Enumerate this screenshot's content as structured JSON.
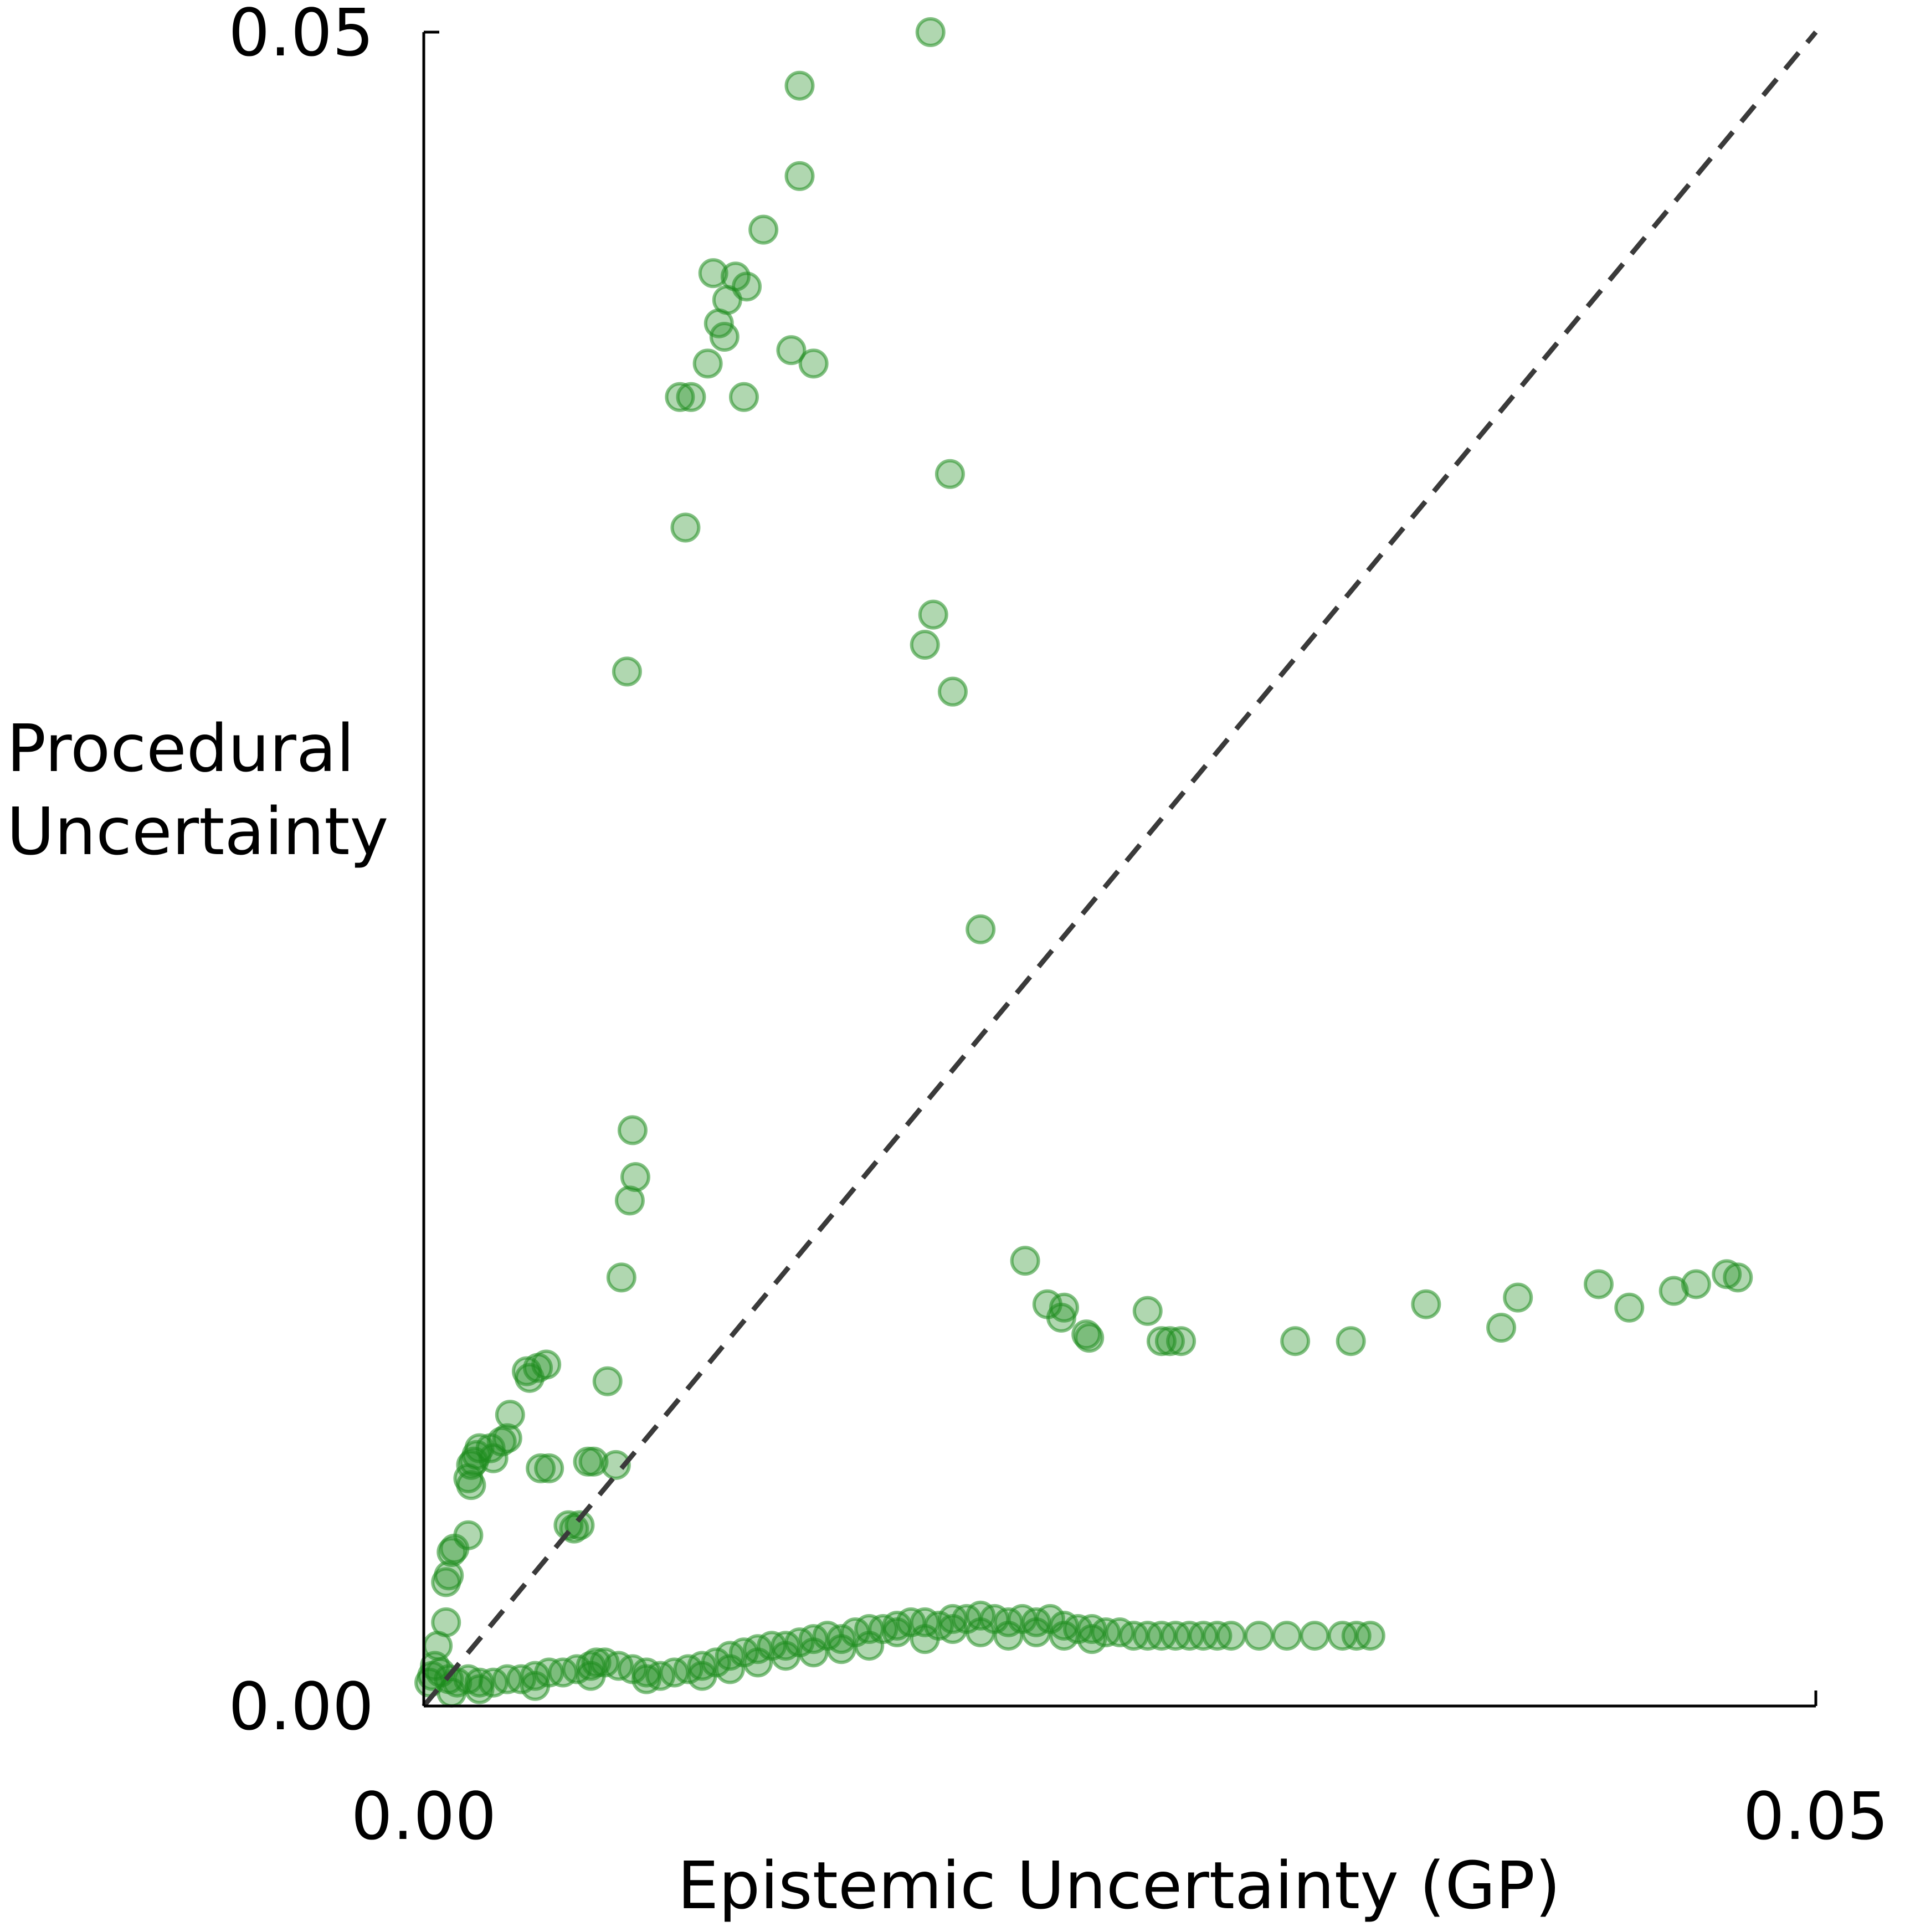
{
  "chart_data": {
    "type": "scatter",
    "title": "",
    "xlabel": "Epistemic Uncertainty (GP)",
    "ylabel_lines": [
      "Procedural",
      "Uncertainty"
    ],
    "xlim": [
      0,
      0.05
    ],
    "ylim": [
      0,
      0.05
    ],
    "x_ticks": [
      {
        "value": 0,
        "label": "0.00"
      },
      {
        "value": 0.05,
        "label": "0.05"
      }
    ],
    "y_ticks": [
      {
        "value": 0,
        "label": "0.00"
      },
      {
        "value": 0.05,
        "label": "0.05"
      }
    ],
    "grid": false,
    "reference_line": {
      "style": "dashed",
      "color": "#3a3a3a",
      "from": [
        0,
        0
      ],
      "to": [
        0.05,
        0.05
      ]
    },
    "point_color": "#1e8c1e",
    "point_opacity": 0.35,
    "series": [
      {
        "name": "points",
        "points": [
          [
            0.0182,
            0.05
          ],
          [
            0.0135,
            0.0484
          ],
          [
            0.0135,
            0.0457
          ],
          [
            0.0122,
            0.0441
          ],
          [
            0.0104,
            0.0428
          ],
          [
            0.0112,
            0.0427
          ],
          [
            0.0116,
            0.0424
          ],
          [
            0.0109,
            0.042
          ],
          [
            0.0106,
            0.0413
          ],
          [
            0.0108,
            0.0409
          ],
          [
            0.0102,
            0.0401
          ],
          [
            0.0132,
            0.0405
          ],
          [
            0.014,
            0.0401
          ],
          [
            0.0092,
            0.0391
          ],
          [
            0.0096,
            0.0391
          ],
          [
            0.0115,
            0.0391
          ],
          [
            0.0189,
            0.0368
          ],
          [
            0.0094,
            0.0352
          ],
          [
            0.0183,
            0.0326
          ],
          [
            0.018,
            0.0317
          ],
          [
            0.019,
            0.0303
          ],
          [
            0.0073,
            0.0309
          ],
          [
            0.02,
            0.0232
          ],
          [
            0.0075,
            0.0172
          ],
          [
            0.0076,
            0.0158
          ],
          [
            0.0074,
            0.0151
          ],
          [
            0.0071,
            0.0128
          ],
          [
            0.0216,
            0.0133
          ],
          [
            0.0224,
            0.012
          ],
          [
            0.023,
            0.0119
          ],
          [
            0.0229,
            0.0116
          ],
          [
            0.0238,
            0.0111
          ],
          [
            0.0239,
            0.011
          ],
          [
            0.026,
            0.0118
          ],
          [
            0.0265,
            0.0109
          ],
          [
            0.0268,
            0.0109
          ],
          [
            0.0272,
            0.0109
          ],
          [
            0.0313,
            0.0109
          ],
          [
            0.0333,
            0.0109
          ],
          [
            0.036,
            0.012
          ],
          [
            0.0387,
            0.0113
          ],
          [
            0.0393,
            0.0122
          ],
          [
            0.0422,
            0.0126
          ],
          [
            0.0433,
            0.0119
          ],
          [
            0.0449,
            0.0124
          ],
          [
            0.0457,
            0.0126
          ],
          [
            0.0468,
            0.0129
          ],
          [
            0.0472,
            0.0128
          ],
          [
            0.0037,
            0.01
          ],
          [
            0.0041,
            0.0101
          ],
          [
            0.0038,
            0.0098
          ],
          [
            0.0044,
            0.0102
          ],
          [
            0.0066,
            0.0097
          ],
          [
            0.0031,
            0.0087
          ],
          [
            0.003,
            0.008
          ],
          [
            0.0028,
            0.0079
          ],
          [
            0.0024,
            0.0077
          ],
          [
            0.002,
            0.0077
          ],
          [
            0.0025,
            0.0074
          ],
          [
            0.0019,
            0.0075
          ],
          [
            0.0018,
            0.0073
          ],
          [
            0.0017,
            0.0072
          ],
          [
            0.0016,
            0.0068
          ],
          [
            0.0017,
            0.0066
          ],
          [
            0.0045,
            0.0071
          ],
          [
            0.0042,
            0.0071
          ],
          [
            0.0059,
            0.0073
          ],
          [
            0.0061,
            0.0073
          ],
          [
            0.0069,
            0.0072
          ],
          [
            0.0052,
            0.0054
          ],
          [
            0.0056,
            0.0054
          ],
          [
            0.0054,
            0.0053
          ],
          [
            0.0016,
            0.0051
          ],
          [
            0.0011,
            0.0047
          ],
          [
            0.001,
            0.0046
          ],
          [
            0.0009,
            0.0039
          ],
          [
            0.0008,
            0.0037
          ],
          [
            0.0008,
            0.0025
          ],
          [
            0.0005,
            0.0018
          ],
          [
            0.0004,
            0.0012
          ],
          [
            0.0006,
            0.001
          ],
          [
            0.0003,
            0.0009
          ],
          [
            0.0002,
            0.0007
          ],
          [
            0.0009,
            0.0008
          ],
          [
            0.0012,
            0.0007
          ],
          [
            0.0016,
            0.0008
          ],
          [
            0.002,
            0.0007
          ],
          [
            0.0025,
            0.0007
          ],
          [
            0.003,
            0.0008
          ],
          [
            0.0035,
            0.0008
          ],
          [
            0.004,
            0.0009
          ],
          [
            0.0045,
            0.001
          ],
          [
            0.005,
            0.001
          ],
          [
            0.0055,
            0.0011
          ],
          [
            0.006,
            0.0012
          ],
          [
            0.0062,
            0.0013
          ],
          [
            0.0065,
            0.0013
          ],
          [
            0.007,
            0.0012
          ],
          [
            0.0075,
            0.0011
          ],
          [
            0.008,
            0.001
          ],
          [
            0.0085,
            0.0009
          ],
          [
            0.009,
            0.001
          ],
          [
            0.0095,
            0.0011
          ],
          [
            0.01,
            0.0012
          ],
          [
            0.0105,
            0.0013
          ],
          [
            0.011,
            0.0015
          ],
          [
            0.0115,
            0.0016
          ],
          [
            0.012,
            0.0017
          ],
          [
            0.0125,
            0.0018
          ],
          [
            0.013,
            0.0018
          ],
          [
            0.0135,
            0.0019
          ],
          [
            0.014,
            0.002
          ],
          [
            0.0145,
            0.0021
          ],
          [
            0.015,
            0.002
          ],
          [
            0.0155,
            0.0022
          ],
          [
            0.016,
            0.0023
          ],
          [
            0.0165,
            0.0023
          ],
          [
            0.017,
            0.0024
          ],
          [
            0.0175,
            0.0025
          ],
          [
            0.018,
            0.0025
          ],
          [
            0.0185,
            0.0024
          ],
          [
            0.019,
            0.0026
          ],
          [
            0.0195,
            0.0026
          ],
          [
            0.02,
            0.0027
          ],
          [
            0.0205,
            0.0026
          ],
          [
            0.021,
            0.0025
          ],
          [
            0.0215,
            0.0026
          ],
          [
            0.022,
            0.0025
          ],
          [
            0.0225,
            0.0026
          ],
          [
            0.023,
            0.0024
          ],
          [
            0.0235,
            0.0023
          ],
          [
            0.024,
            0.0023
          ],
          [
            0.0245,
            0.0022
          ],
          [
            0.025,
            0.0022
          ],
          [
            0.0255,
            0.0021
          ],
          [
            0.026,
            0.0021
          ],
          [
            0.0265,
            0.0021
          ],
          [
            0.027,
            0.0021
          ],
          [
            0.0275,
            0.0021
          ],
          [
            0.028,
            0.0021
          ],
          [
            0.0285,
            0.0021
          ],
          [
            0.029,
            0.0021
          ],
          [
            0.03,
            0.0021
          ],
          [
            0.031,
            0.0021
          ],
          [
            0.032,
            0.0021
          ],
          [
            0.033,
            0.0021
          ],
          [
            0.0335,
            0.0021
          ],
          [
            0.034,
            0.0021
          ],
          [
            0.012,
            0.0013
          ],
          [
            0.014,
            0.0016
          ],
          [
            0.016,
            0.0018
          ],
          [
            0.018,
            0.002
          ],
          [
            0.02,
            0.0022
          ],
          [
            0.022,
            0.0022
          ],
          [
            0.024,
            0.002
          ],
          [
            0.015,
            0.0017
          ],
          [
            0.017,
            0.0022
          ],
          [
            0.019,
            0.0023
          ],
          [
            0.021,
            0.0021
          ],
          [
            0.023,
            0.0021
          ],
          [
            0.01,
            0.0009
          ],
          [
            0.011,
            0.0011
          ],
          [
            0.013,
            0.0015
          ],
          [
            0.006,
            0.0009
          ],
          [
            0.008,
            0.0008
          ],
          [
            0.004,
            0.0006
          ],
          [
            0.002,
            0.0005
          ],
          [
            0.001,
            0.0004
          ]
        ]
      }
    ]
  }
}
